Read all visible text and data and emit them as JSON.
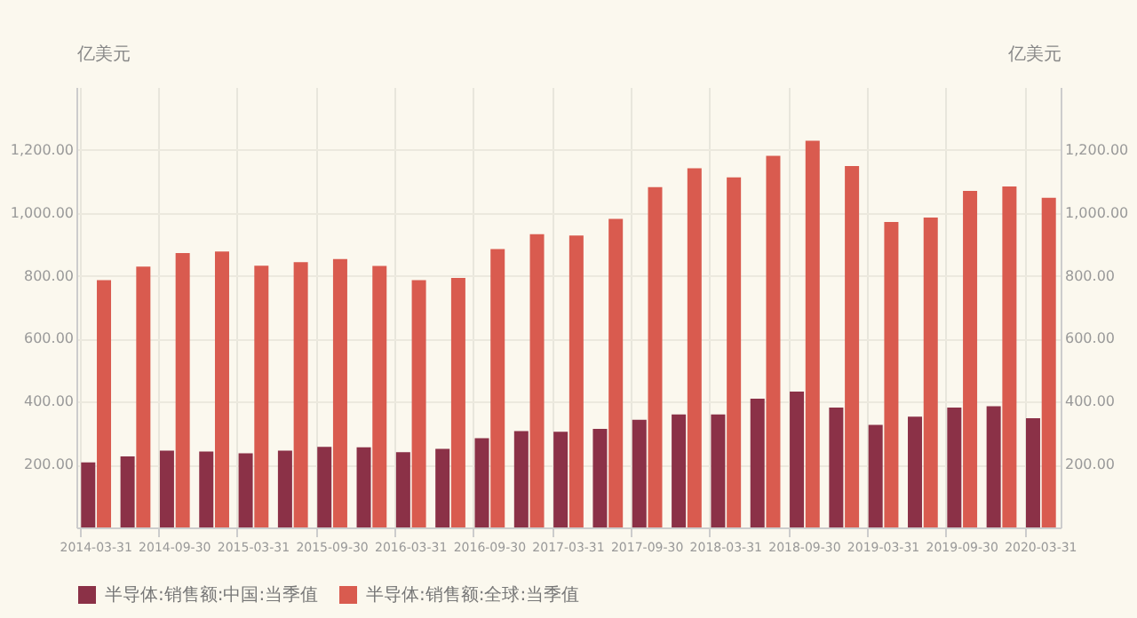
{
  "chart_data": {
    "type": "bar",
    "categories": [
      "2014-03-31",
      null,
      "2014-09-30",
      null,
      "2015-03-31",
      null,
      "2015-09-30",
      null,
      "2016-03-31",
      null,
      "2016-09-30",
      null,
      "2017-03-31",
      null,
      "2017-09-30",
      null,
      "2018-03-31",
      null,
      "2018-09-30",
      null,
      "2019-03-31",
      null,
      "2019-09-30",
      null,
      "2020-03-31"
    ],
    "series": [
      {
        "name": "半导体:销售额:中国:当季值",
        "color": "#8b3147",
        "values": [
          207,
          226,
          244,
          241,
          236,
          244,
          256,
          255,
          239,
          250,
          284,
          306,
          304,
          313,
          342,
          359,
          359,
          409,
          432,
          381,
          326,
          352,
          381,
          385,
          347
        ]
      },
      {
        "name": "半导体:销售额:全球:当季值",
        "color": "#d95b4f",
        "values": [
          786,
          829,
          872,
          877,
          832,
          843,
          853,
          831,
          786,
          793,
          885,
          932,
          928,
          981,
          1082,
          1142,
          1113,
          1181,
          1229,
          1149,
          971,
          985,
          1070,
          1084,
          1048
        ]
      }
    ],
    "ylabel": "亿美元",
    "y2label": "亿美元",
    "ylim": [
      0,
      1400
    ],
    "yticks": [
      {
        "value": 200,
        "label": "200.00"
      },
      {
        "value": 400,
        "label": "400.00"
      },
      {
        "value": 600,
        "label": "600.00"
      },
      {
        "value": 800,
        "label": "800.00"
      },
      {
        "value": 1000,
        "label": "1,000.00"
      },
      {
        "value": 1200,
        "label": "1,200.00"
      }
    ],
    "y2lim": [
      0,
      1400
    ],
    "y2ticks": [
      {
        "value": 200,
        "label": "200.00"
      },
      {
        "value": 400,
        "label": "400.00"
      },
      {
        "value": 600,
        "label": "600.00"
      },
      {
        "value": 800,
        "label": "800.00"
      },
      {
        "value": 1000,
        "label": "1,000.00"
      },
      {
        "value": 1200,
        "label": "1,200.00"
      }
    ],
    "grid": true,
    "legend": "bottom"
  }
}
